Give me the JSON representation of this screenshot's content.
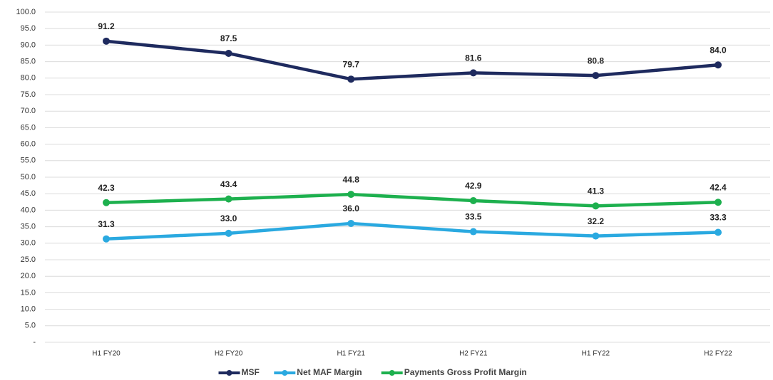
{
  "chart_data": {
    "type": "line",
    "categories": [
      "H1 FY20",
      "H2 FY20",
      "H1 FY21",
      "H2 FY21",
      "H1 FY22",
      "H2 FY22"
    ],
    "series": [
      {
        "name": "MSF",
        "color": "#1e2a5e",
        "values": [
          91.2,
          87.5,
          79.7,
          81.6,
          80.8,
          84.0
        ],
        "value_labels": [
          "91.2",
          "87.5",
          "79.7",
          "81.6",
          "80.8",
          "84.0"
        ]
      },
      {
        "name": "Net MAF Margin",
        "color": "#2aa9e0",
        "values": [
          31.3,
          33.0,
          36.0,
          33.5,
          32.2,
          33.3
        ],
        "value_labels": [
          "31.3",
          "33.0",
          "36.0",
          "33.5",
          "32.2",
          "33.3"
        ]
      },
      {
        "name": "Payments Gross Profit Margin",
        "color": "#1db04e",
        "values": [
          42.3,
          43.4,
          44.8,
          42.9,
          41.3,
          42.4
        ],
        "value_labels": [
          "42.3",
          "43.4",
          "44.8",
          "42.9",
          "41.3",
          "42.4"
        ]
      }
    ],
    "ylim": [
      0,
      100
    ],
    "yticks": [
      {
        "value": 0,
        "label": "-"
      },
      {
        "value": 5,
        "label": "5.0"
      },
      {
        "value": 10,
        "label": "10.0"
      },
      {
        "value": 15,
        "label": "15.0"
      },
      {
        "value": 20,
        "label": "20.0"
      },
      {
        "value": 25,
        "label": "25.0"
      },
      {
        "value": 30,
        "label": "30.0"
      },
      {
        "value": 35,
        "label": "35.0"
      },
      {
        "value": 40,
        "label": "40.0"
      },
      {
        "value": 45,
        "label": "45.0"
      },
      {
        "value": 50,
        "label": "50.0"
      },
      {
        "value": 55,
        "label": "55.0"
      },
      {
        "value": 60,
        "label": "60.0"
      },
      {
        "value": 65,
        "label": "65.0"
      },
      {
        "value": 70,
        "label": "70.0"
      },
      {
        "value": 75,
        "label": "75.0"
      },
      {
        "value": 80,
        "label": "80.0"
      },
      {
        "value": 85,
        "label": "85.0"
      },
      {
        "value": 90,
        "label": "90.0"
      },
      {
        "value": 95,
        "label": "95.0"
      },
      {
        "value": 100,
        "label": "100.0"
      }
    ],
    "grid": true,
    "legend": "bottom"
  }
}
